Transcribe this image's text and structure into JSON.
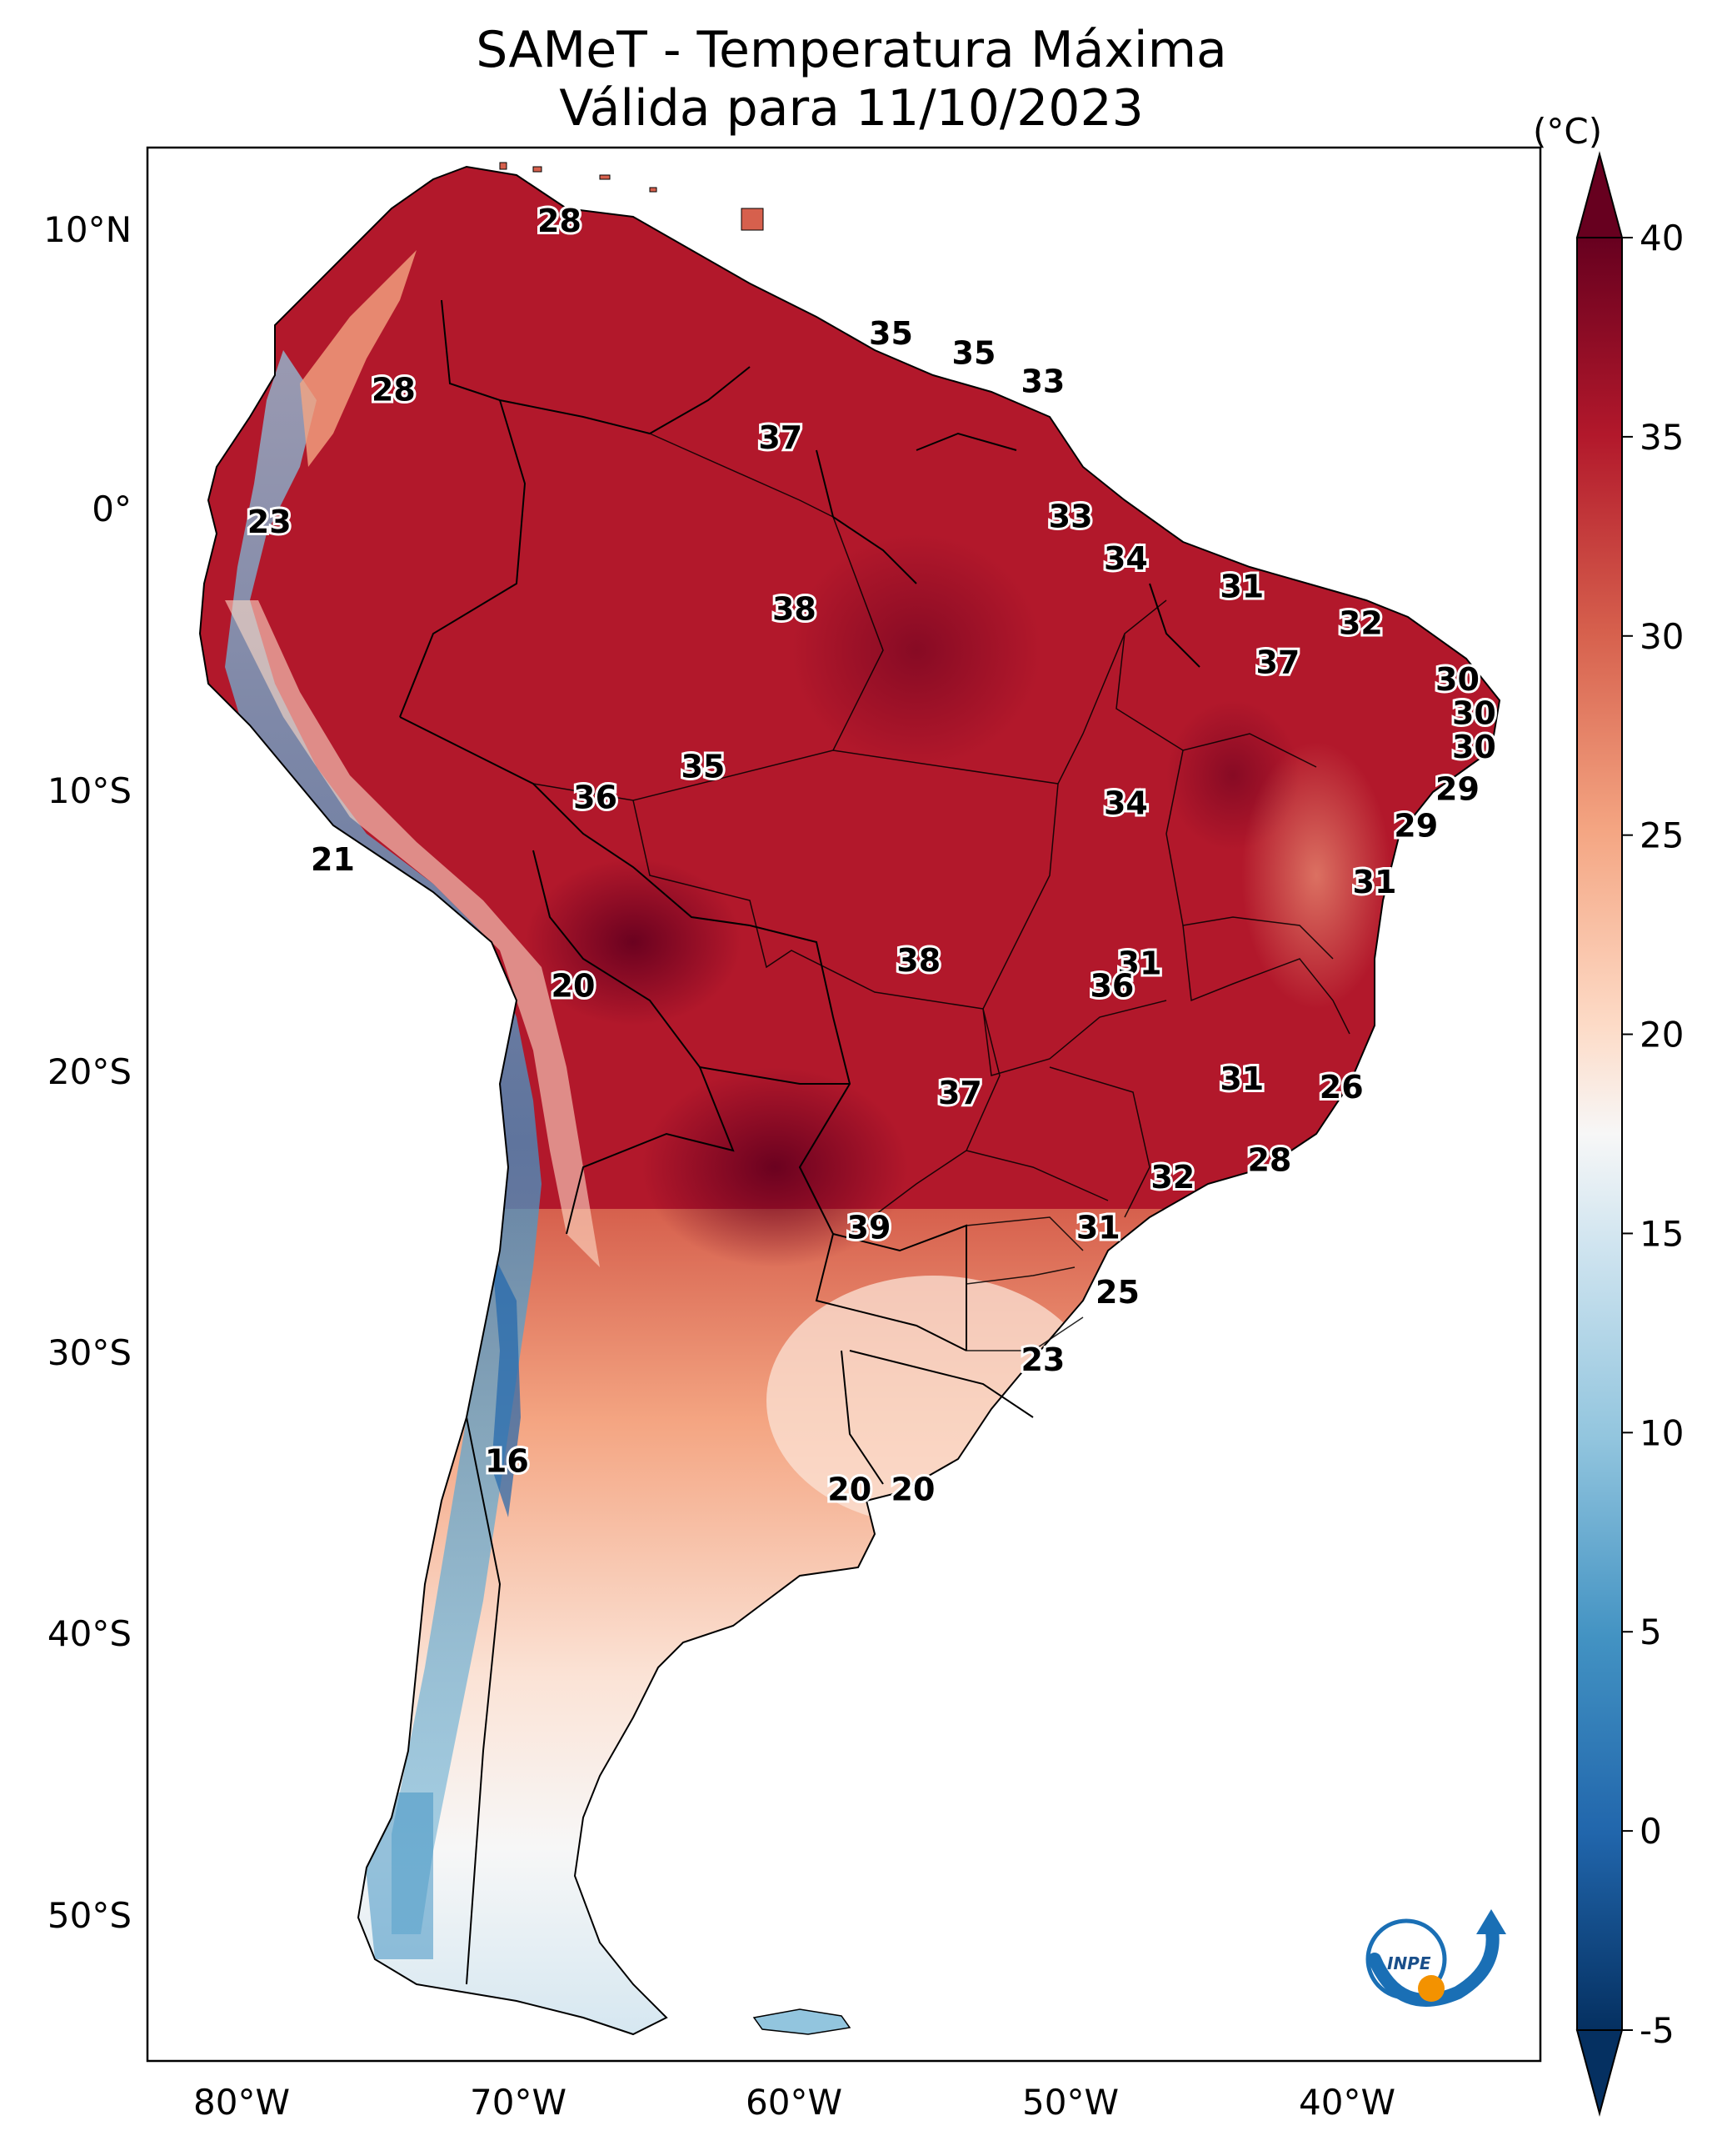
{
  "title": {
    "line1": "SAMeT - Temperatura Máxima",
    "line2": "Válida para 11/10/2023"
  },
  "axes": {
    "longitude_labels": [
      "80°W",
      "70°W",
      "60°W",
      "50°W",
      "40°W"
    ],
    "latitude_labels": [
      "10°N",
      "0°",
      "10°S",
      "20°S",
      "30°S",
      "40°S",
      "50°S"
    ]
  },
  "colorbar": {
    "unit": "(°C)",
    "ticks": [
      "40",
      "35",
      "30",
      "25",
      "20",
      "15",
      "10",
      "5",
      "0",
      "-5"
    ],
    "range": [
      -5,
      40
    ],
    "colormap": "RdBu_r",
    "colors": {
      "cold": "#053061",
      "cool": "#4393c3",
      "neutral": "#f7f7f7",
      "warm": "#f4a582",
      "hot": "#b2182b",
      "extreme": "#67001f"
    }
  },
  "temperature_labels": [
    {
      "value": "28",
      "lon": -68.5,
      "lat": 10.5
    },
    {
      "value": "35",
      "lon": -56.5,
      "lat": 6.5
    },
    {
      "value": "35",
      "lon": -53.5,
      "lat": 5.8
    },
    {
      "value": "33",
      "lon": -51.0,
      "lat": 4.8
    },
    {
      "value": "28",
      "lon": -74.5,
      "lat": 4.5
    },
    {
      "value": "37",
      "lon": -60.5,
      "lat": 2.8
    },
    {
      "value": "23",
      "lon": -79.0,
      "lat": -0.2
    },
    {
      "value": "33",
      "lon": -50.0,
      "lat": 0.0
    },
    {
      "value": "34",
      "lon": -48.0,
      "lat": -1.5
    },
    {
      "value": "31",
      "lon": -43.8,
      "lat": -2.5
    },
    {
      "value": "38",
      "lon": -60.0,
      "lat": -3.3
    },
    {
      "value": "32",
      "lon": -39.5,
      "lat": -3.8
    },
    {
      "value": "37",
      "lon": -42.5,
      "lat": -5.2
    },
    {
      "value": "30",
      "lon": -36.0,
      "lat": -5.8
    },
    {
      "value": "30",
      "lon": -35.4,
      "lat": -7.0
    },
    {
      "value": "30",
      "lon": -35.4,
      "lat": -8.2
    },
    {
      "value": "35",
      "lon": -63.3,
      "lat": -8.9
    },
    {
      "value": "29",
      "lon": -36.0,
      "lat": -9.7
    },
    {
      "value": "36",
      "lon": -67.2,
      "lat": -10.0
    },
    {
      "value": "34",
      "lon": -48.0,
      "lat": -10.2
    },
    {
      "value": "29",
      "lon": -37.5,
      "lat": -11.0
    },
    {
      "value": "21",
      "lon": -76.7,
      "lat": -12.2
    },
    {
      "value": "31",
      "lon": -39.0,
      "lat": -13.0
    },
    {
      "value": "38",
      "lon": -55.5,
      "lat": -15.8
    },
    {
      "value": "31",
      "lon": -47.5,
      "lat": -15.9
    },
    {
      "value": "20",
      "lon": -68.0,
      "lat": -16.7
    },
    {
      "value": "36",
      "lon": -48.5,
      "lat": -16.7
    },
    {
      "value": "31",
      "lon": -43.8,
      "lat": -20.0
    },
    {
      "value": "26",
      "lon": -40.2,
      "lat": -20.3
    },
    {
      "value": "37",
      "lon": -54.0,
      "lat": -20.5
    },
    {
      "value": "28",
      "lon": -42.8,
      "lat": -22.9
    },
    {
      "value": "32",
      "lon": -46.3,
      "lat": -23.5
    },
    {
      "value": "39",
      "lon": -57.3,
      "lat": -25.3
    },
    {
      "value": "31",
      "lon": -49.0,
      "lat": -25.3
    },
    {
      "value": "25",
      "lon": -48.3,
      "lat": -27.6
    },
    {
      "value": "23",
      "lon": -51.0,
      "lat": -30.0
    },
    {
      "value": "16",
      "lon": -70.4,
      "lat": -33.6
    },
    {
      "value": "20",
      "lon": -58.0,
      "lat": -34.6
    },
    {
      "value": "20",
      "lon": -55.7,
      "lat": -34.6
    }
  ],
  "logo_text": "INPE"
}
